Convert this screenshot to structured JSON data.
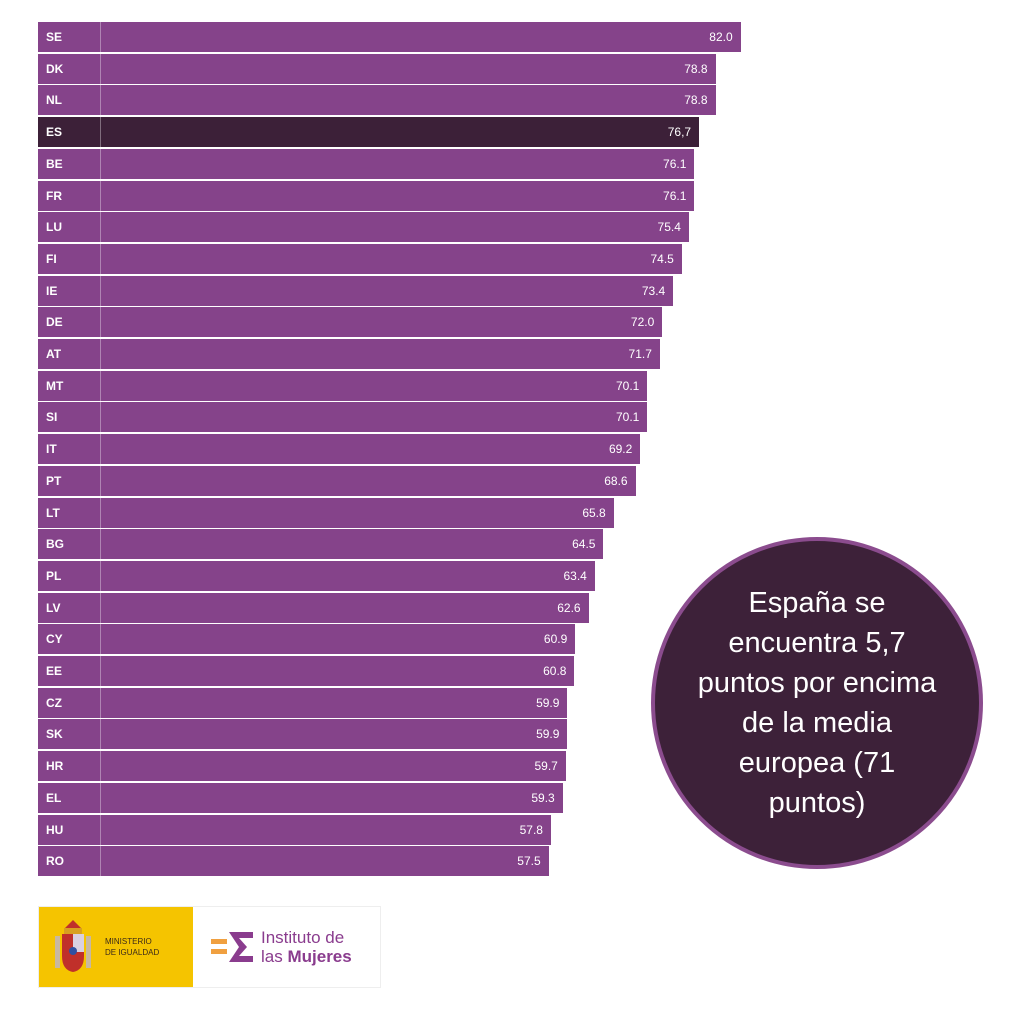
{
  "chart_data": {
    "type": "bar",
    "orientation": "horizontal",
    "categories": [
      "SE",
      "DK",
      "NL",
      "ES",
      "BE",
      "FR",
      "LU",
      "FI",
      "IE",
      "DE",
      "AT",
      "MT",
      "SI",
      "IT",
      "PT",
      "LT",
      "BG",
      "PL",
      "LV",
      "CY",
      "EE",
      "CZ",
      "SK",
      "HR",
      "EL",
      "HU",
      "RO"
    ],
    "values": [
      82.0,
      78.8,
      78.8,
      76.7,
      76.1,
      76.1,
      75.4,
      74.5,
      73.4,
      72.0,
      71.7,
      70.1,
      70.1,
      69.2,
      68.6,
      65.8,
      64.5,
      63.4,
      62.6,
      60.9,
      60.8,
      59.9,
      59.9,
      59.7,
      59.3,
      57.8,
      57.5
    ],
    "labels": [
      "82.0",
      "78.8",
      "78.8",
      "76,7",
      "76.1",
      "76.1",
      "75.4",
      "74.5",
      "73.4",
      "72.0",
      "71.7",
      "70.1",
      "70.1",
      "69.2",
      "68.6",
      "65.8",
      "64.5",
      "63.4",
      "62.6",
      "60.9",
      "60.8",
      "59.9",
      "59.9",
      "59.7",
      "59.3",
      "57.8",
      "57.5"
    ],
    "highlight": "ES",
    "colors": {
      "bar": "#85438a",
      "highlight": "#3c2038"
    }
  },
  "callout": {
    "text": "España se encuentra 5,7 puntos por encima de la media europea (71 puntos)"
  },
  "logos": {
    "ministry_line1": "MINISTERIO",
    "ministry_line2": "DE IGUALDAD",
    "institute_line1": "Instituto de",
    "institute_line2_a": "las ",
    "institute_line2_b": "Mujeres"
  }
}
